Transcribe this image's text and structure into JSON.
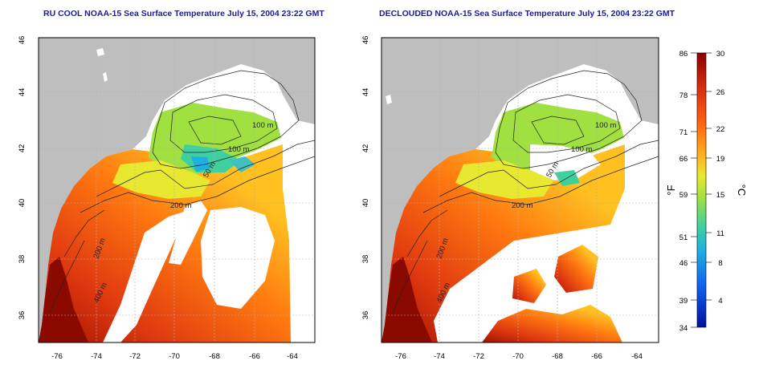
{
  "left_panel": {
    "title": "RU COOL NOAA-15 Sea Surface Temperature July 15, 2004 23:22 GMT",
    "x_ticks": [
      "-76",
      "-74",
      "-72",
      "-70",
      "-68",
      "-66",
      "-64"
    ],
    "y_ticks": [
      "36",
      "38",
      "40",
      "42",
      "44",
      "46"
    ],
    "contour_labels": [
      "100 m",
      "100 m",
      "50 m",
      "200 m",
      "200 m",
      "400 m"
    ]
  },
  "right_panel": {
    "title": "DECLOUDED NOAA-15 Sea Surface Temperature July 15, 2004 23:22 GMT",
    "x_ticks": [
      "-76",
      "-74",
      "-72",
      "-70",
      "-68",
      "-66",
      "-64"
    ],
    "y_ticks": [
      "36",
      "38",
      "40",
      "42",
      "44",
      "46"
    ],
    "contour_labels": [
      "100 m",
      "100 m",
      "50 m",
      "200 m",
      "200 m",
      "400 m"
    ]
  },
  "colorbar": {
    "fahrenheit_label": "°F",
    "celsius_label": "°C",
    "fahrenheit_ticks": [
      "86",
      "78",
      "71",
      "66",
      "59",
      "51",
      "46",
      "39",
      "34"
    ],
    "celsius_ticks": [
      "30",
      "26",
      "22",
      "19",
      "15",
      "11",
      "8",
      "4"
    ],
    "colors": [
      "#8b0000",
      "#d42a10",
      "#ff6010",
      "#ffb020",
      "#e8e830",
      "#a0e040",
      "#40d0a0",
      "#20b0e0",
      "#1060f0",
      "#0010a0"
    ]
  },
  "colors": {
    "land": "#bebebe",
    "cloud_gap": "#ffffff",
    "title_text": "#1a1aa0",
    "grid": "#b0b0b0"
  }
}
